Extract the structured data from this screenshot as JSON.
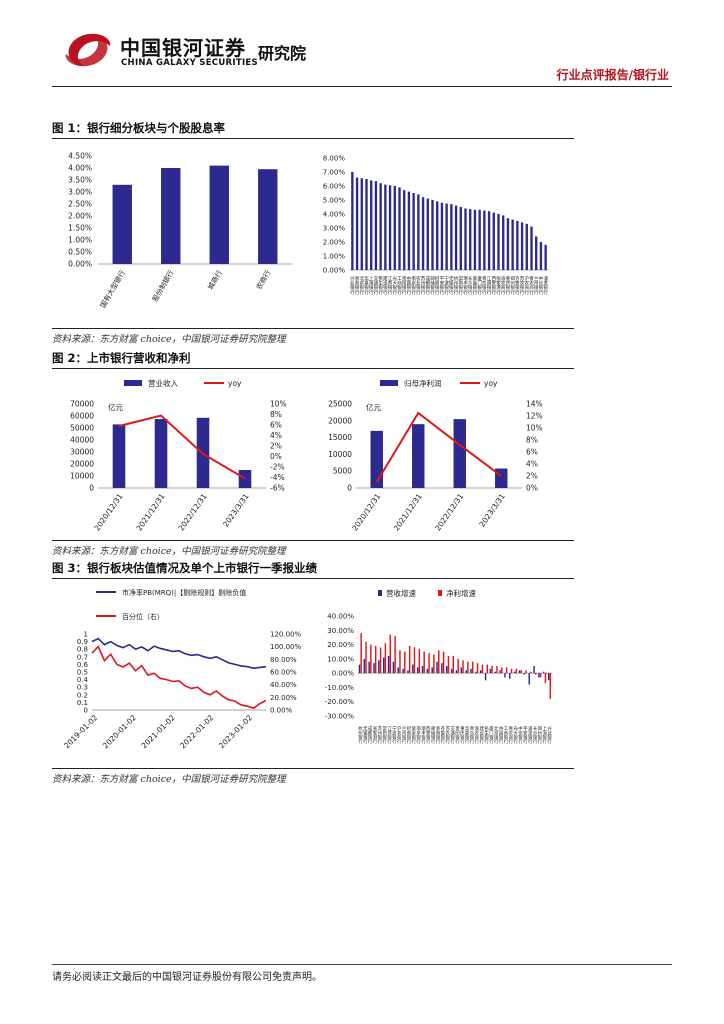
{
  "header": {
    "logo_cn": "中国银河证券",
    "logo_en": "CHINA GALAXY SECURITIES",
    "logo_dept": "研究院",
    "report_type": "行业点评报告/银行业"
  },
  "figures": [
    {
      "title": "图 1：银行细分板块与个股股息率",
      "source": "资料来源：东方财富 choice，中国银河证券研究院整理"
    },
    {
      "title": "图 2：上市银行营收和净利",
      "source": "资料来源：东方财富 choice，中国银河证券研究院整理"
    },
    {
      "title": "图 3：银行板块估值情况及单个上市银行一季报业绩",
      "source": "资料来源：东方财富 choice，中国银河证券研究院整理"
    }
  ],
  "footer": {
    "disclaimer": "请务必阅读正文最后的中国银河证券股份有限公司免责声明。"
  },
  "colors": {
    "bar": "#2d2a8f",
    "line": "#e0161b",
    "brand_red": "#b8121e"
  },
  "chart_data": [
    {
      "id": "c1a",
      "type": "bar",
      "title": "",
      "categories": [
        "国有大型银行",
        "股份制银行",
        "城商行",
        "农商行"
      ],
      "values": [
        3.3,
        4.0,
        4.1,
        3.95
      ],
      "ylim": [
        0,
        4.5
      ],
      "yticks": [
        "0.00%",
        "0.50%",
        "1.00%",
        "1.50%",
        "2.00%",
        "2.50%",
        "3.00%",
        "3.50%",
        "4.00%",
        "4.50%"
      ]
    },
    {
      "id": "c1b",
      "type": "bar",
      "categories": [
        "兴业银行",
        "浙商银行",
        "北京银行",
        "华夏银行",
        "上海银行",
        "交通银行",
        "民生银行",
        "建设银行",
        "江苏银行",
        "光大银行",
        "工商银行",
        "贵阳银行",
        "中国银行",
        "南京银行",
        "农业银行",
        "苏州银行",
        "成都银行",
        "邮储银行",
        "招商银行",
        "平安银行",
        "宁波银行",
        "无锡银行",
        "杭州银行",
        "常熟银行",
        "瑞丰银行",
        "长沙银行",
        "紫金银行",
        "厦门银行",
        "青岛银行",
        "江阴银行",
        "西安银行",
        "张家港行",
        "渝农商行",
        "重庆银行",
        "郑州银行",
        "齐鲁银行",
        "苏农银行",
        "沪农商行",
        "青农商行",
        "兰州银行",
        "中信银行",
        "浦发银行"
      ],
      "values": [
        7.0,
        6.6,
        6.55,
        6.5,
        6.4,
        6.35,
        6.2,
        6.1,
        6.05,
        6.0,
        5.9,
        5.7,
        5.6,
        5.5,
        5.4,
        5.2,
        5.1,
        5.0,
        4.9,
        4.8,
        4.75,
        4.7,
        4.6,
        4.5,
        4.4,
        4.35,
        4.3,
        4.3,
        4.25,
        4.2,
        4.1,
        4.0,
        3.9,
        3.7,
        3.6,
        3.5,
        3.4,
        3.3,
        3.1,
        2.4,
        2.0,
        1.8
      ],
      "ylim": [
        0,
        8
      ],
      "yticks": [
        "0.00%",
        "1.00%",
        "2.00%",
        "3.00%",
        "4.00%",
        "5.00%",
        "6.00%",
        "7.00%",
        "8.00%"
      ]
    },
    {
      "id": "c2a",
      "type": "bar+line",
      "legend": [
        "营业收入",
        "yoy"
      ],
      "unit": "亿元",
      "categories": [
        "2020/12/31",
        "2021/12/31",
        "2022/12/31",
        "2023/3/31"
      ],
      "values": [
        53000,
        57500,
        58500,
        15000
      ],
      "yoy": [
        5.8,
        7.8,
        0.5,
        -4.2
      ],
      "ylim": [
        0,
        70000
      ],
      "y2lim": [
        -6,
        10
      ],
      "yticks": [
        "0",
        "10000",
        "20000",
        "30000",
        "40000",
        "50000",
        "60000",
        "70000"
      ],
      "y2ticks": [
        "-6%",
        "-4%",
        "-2%",
        "0%",
        "2%",
        "4%",
        "6%",
        "8%",
        "10%"
      ]
    },
    {
      "id": "c2b",
      "type": "bar+line",
      "legend": [
        "归母净利润",
        "yoy"
      ],
      "unit": "亿元",
      "categories": [
        "2020/12/31",
        "2021/12/31",
        "2022/12/31",
        "2023/3/31"
      ],
      "values": [
        17000,
        19000,
        20500,
        5800
      ],
      "yoy": [
        1.0,
        12.5,
        7.2,
        2.0
      ],
      "ylim": [
        0,
        25000
      ],
      "y2lim": [
        0,
        14
      ],
      "yticks": [
        "0",
        "5000",
        "10000",
        "15000",
        "20000",
        "25000"
      ],
      "y2ticks": [
        "0%",
        "2%",
        "4%",
        "6%",
        "8%",
        "10%",
        "12%",
        "14%"
      ]
    },
    {
      "id": "c3a",
      "type": "line",
      "legend": [
        "市净率PB(MRQ)|【剔除规则】剔除负值",
        "百分位（右）"
      ],
      "xticks": [
        "2019-01-02",
        "2020-01-02",
        "2021-01-02",
        "2022-01-02",
        "2023-01-02"
      ],
      "ylim": [
        0,
        1
      ],
      "y2lim": [
        0,
        120
      ],
      "yticks": [
        "0",
        "0.1",
        "0.2",
        "0.3",
        "0.4",
        "0.5",
        "0.6",
        "0.7",
        "0.8",
        "0.9",
        "1"
      ],
      "y2ticks": [
        "0.00%",
        "20.00%",
        "40.00%",
        "60.00%",
        "80.00%",
        "100.00%",
        "120.00%"
      ],
      "pb": [
        0.9,
        0.94,
        0.86,
        0.9,
        0.85,
        0.82,
        0.86,
        0.8,
        0.83,
        0.78,
        0.84,
        0.81,
        0.79,
        0.77,
        0.78,
        0.74,
        0.72,
        0.73,
        0.7,
        0.68,
        0.7,
        0.66,
        0.62,
        0.6,
        0.58,
        0.57,
        0.55,
        0.56,
        0.57
      ],
      "pct": [
        90,
        100,
        78,
        88,
        72,
        68,
        74,
        62,
        70,
        55,
        58,
        50,
        48,
        45,
        46,
        38,
        34,
        36,
        28,
        24,
        30,
        22,
        16,
        14,
        8,
        6,
        3,
        10,
        15
      ]
    },
    {
      "id": "c3b",
      "type": "bar",
      "legend": [
        "营收增速",
        "净利增速"
      ],
      "ylim": [
        -30,
        40
      ],
      "yticks": [
        "-30.00%",
        "-20.00%",
        "-10.00%",
        "0.00%",
        "10.00%",
        "20.00%",
        "30.00%",
        "40.00%"
      ],
      "categories": [
        "杭州银行",
        "无锡银行",
        "成都银行",
        "张家港行",
        "苏州银行",
        "常熟银行",
        "江苏银行",
        "宁波银行",
        "沪农商行",
        "兰州银行",
        "招商银行",
        "紫金银行",
        "南京银行",
        "瑞丰银行",
        "西安银行",
        "邮储银行",
        "浙商银行",
        "齐鲁银行",
        "苏农银行",
        "交通银行",
        "贵阳银行",
        "重庆银行",
        "华夏银行",
        "青岛银行",
        "渝农商行",
        "建设银行",
        "民生银行",
        "厦门银行",
        "北京银行",
        "中国银行",
        "工商银行",
        "青农商行",
        "光大银行",
        "中信银行",
        "平安银行",
        "浦发银行",
        "长沙银行",
        "郑州银行",
        "上海银行",
        "兴业银行"
      ],
      "revenue": [
        6,
        10,
        8,
        7,
        9,
        11,
        12,
        8,
        4,
        3,
        2,
        6,
        4,
        5,
        3,
        4,
        8,
        7,
        5,
        3,
        2,
        4,
        2,
        3,
        1,
        2,
        -5,
        3,
        1,
        2,
        -3,
        -4,
        1,
        2,
        -1,
        -8,
        5,
        -3,
        1,
        -5
      ],
      "profit": [
        28,
        22,
        20,
        19,
        18,
        21,
        27,
        26,
        16,
        15,
        19,
        18,
        17,
        15,
        14,
        13,
        16,
        15,
        12,
        12,
        10,
        9,
        8,
        8,
        7,
        6,
        6,
        5,
        5,
        4,
        4,
        3,
        3,
        2,
        2,
        1,
        -1,
        -3,
        -7,
        -18
      ]
    }
  ]
}
